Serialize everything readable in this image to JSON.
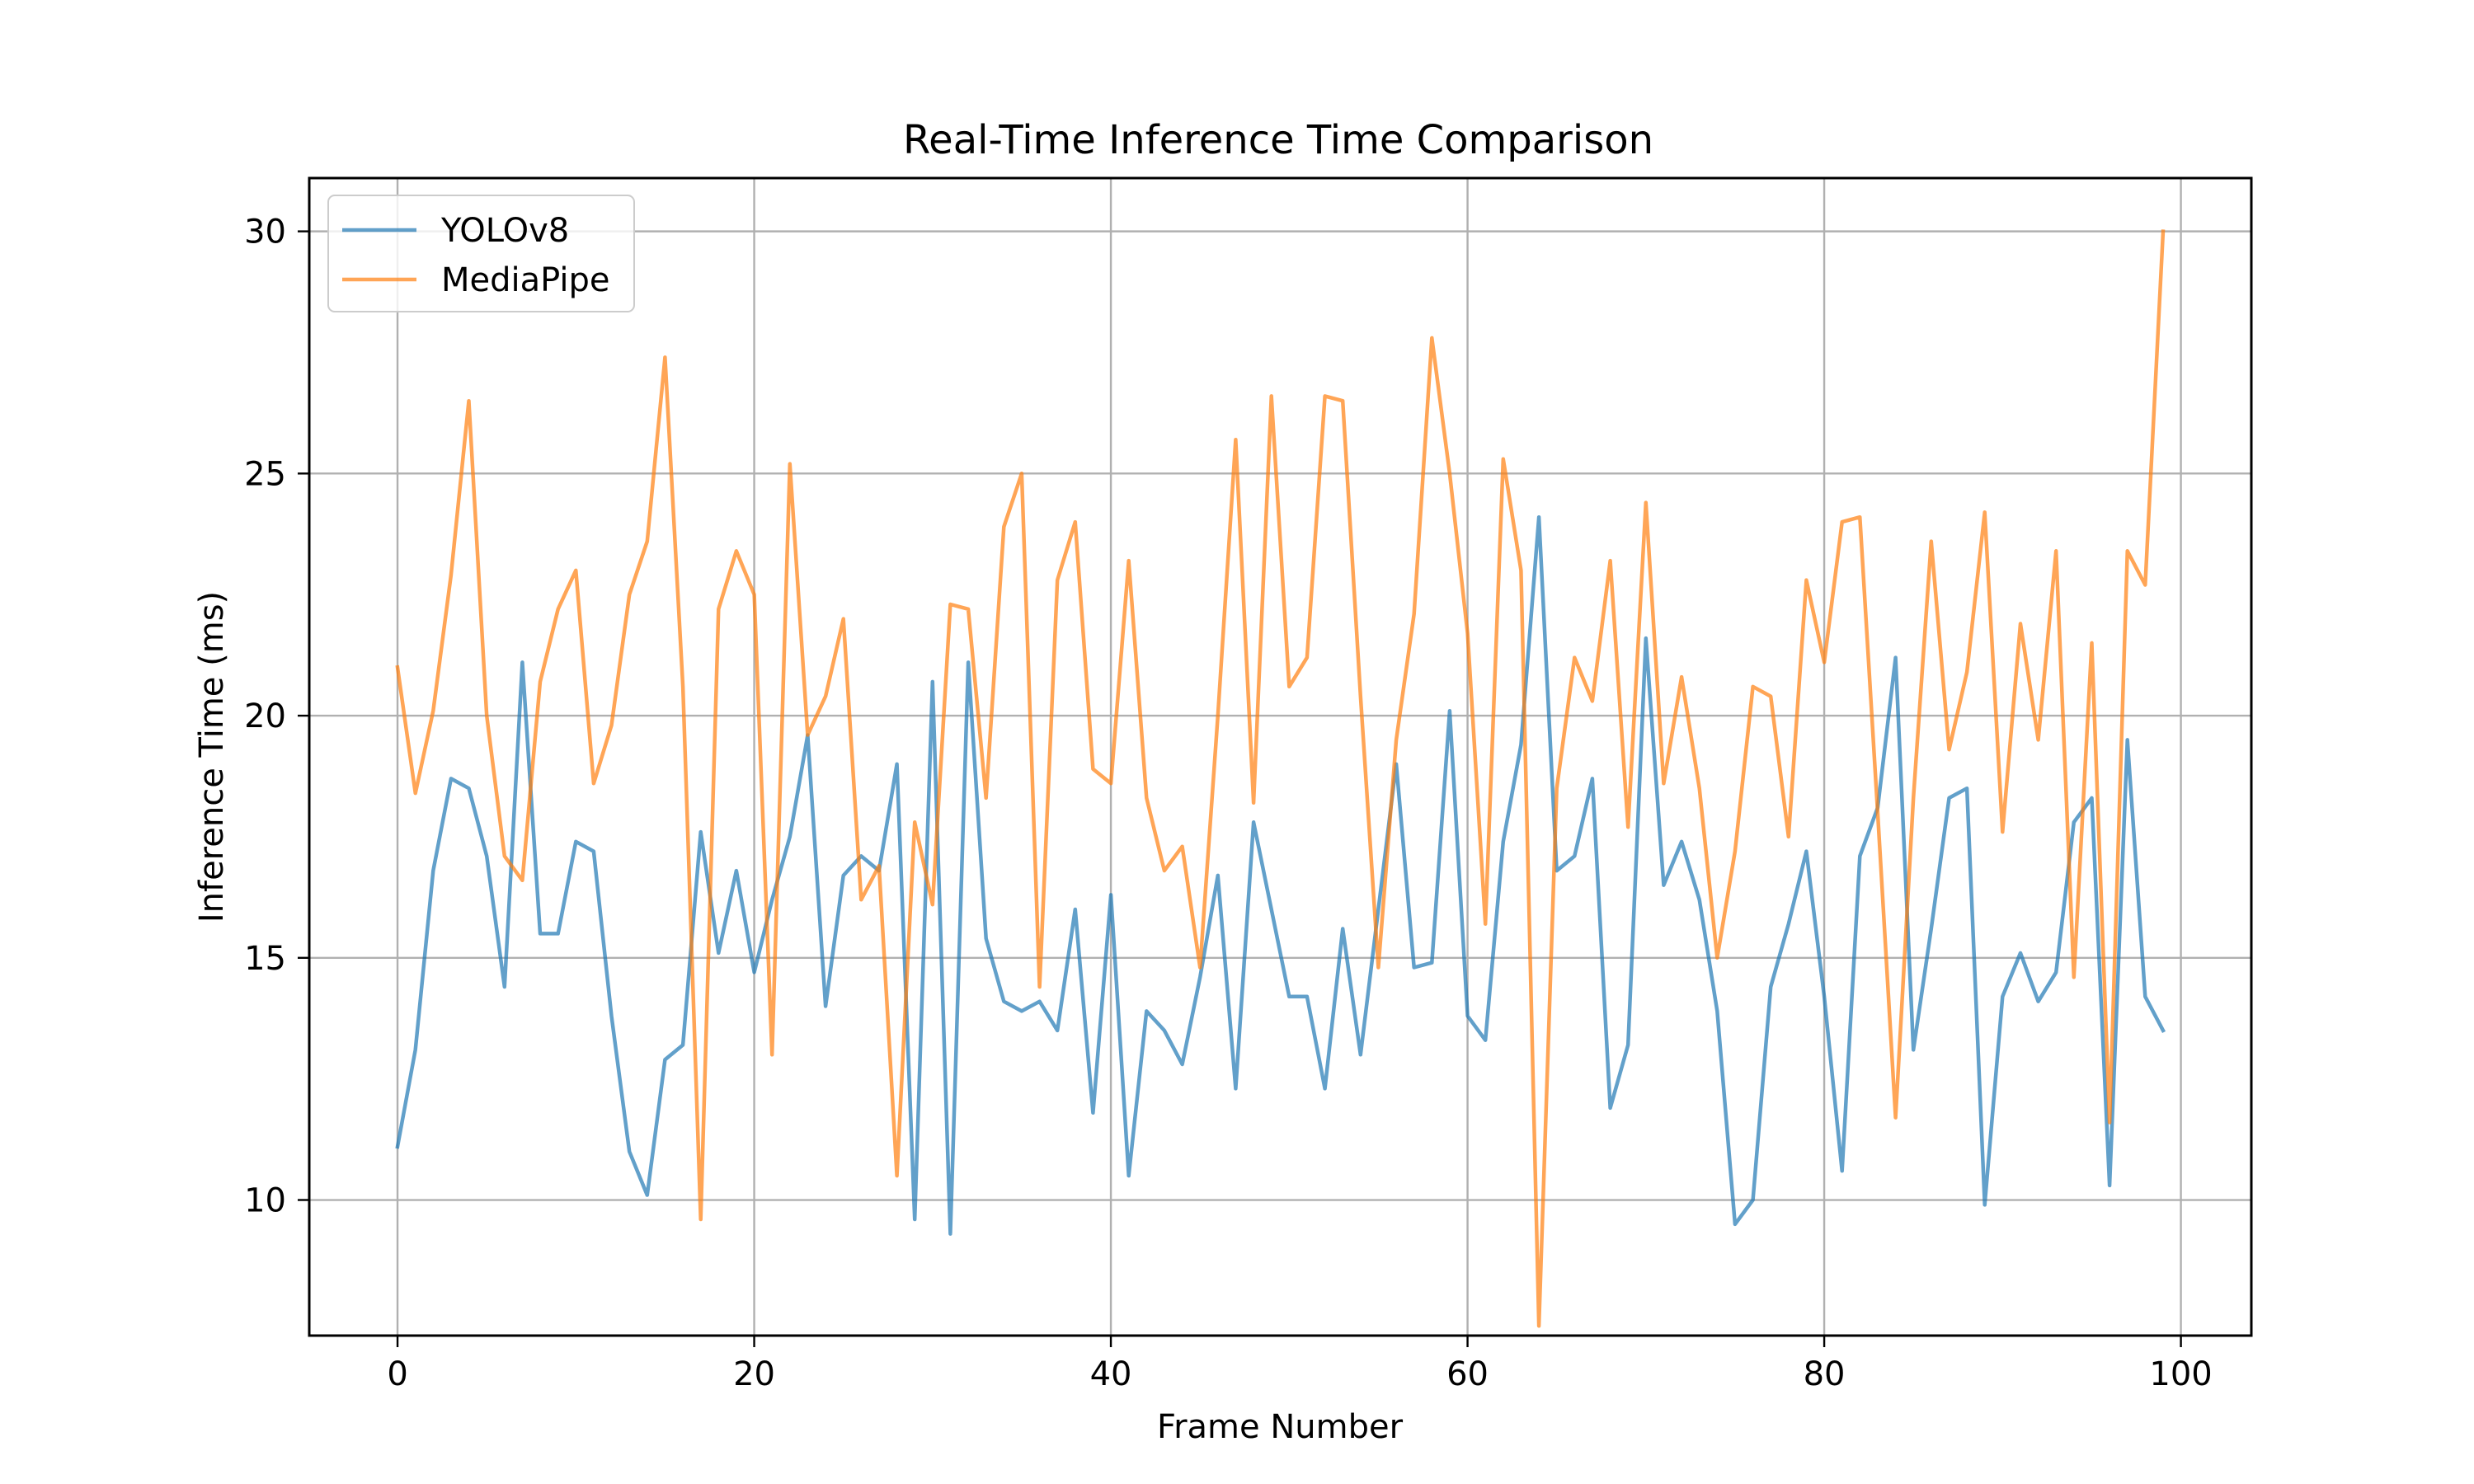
{
  "chart_data": {
    "type": "line",
    "title": "Real-Time Inference Time Comparison",
    "xlabel": "Frame Number",
    "ylabel": "Inference Time (ms)",
    "xlim": [
      -4.95,
      103.95
    ],
    "ylim": [
      7.2,
      31.1
    ],
    "xticks": [
      0,
      20,
      40,
      60,
      80,
      100
    ],
    "yticks": [
      10,
      15,
      20,
      25,
      30
    ],
    "grid": true,
    "legend_position": "upper-left",
    "x": [
      0,
      1,
      2,
      3,
      4,
      5,
      6,
      7,
      8,
      9,
      10,
      11,
      12,
      13,
      14,
      15,
      16,
      17,
      18,
      19,
      20,
      21,
      22,
      23,
      24,
      25,
      26,
      27,
      28,
      29,
      30,
      31,
      32,
      33,
      34,
      35,
      36,
      37,
      38,
      39,
      40,
      41,
      42,
      43,
      44,
      45,
      46,
      47,
      48,
      49,
      50,
      51,
      52,
      53,
      54,
      55,
      56,
      57,
      58,
      59,
      60,
      61,
      62,
      63,
      64,
      65,
      66,
      67,
      68,
      69,
      70,
      71,
      72,
      73,
      74,
      75,
      76,
      77,
      78,
      79,
      80,
      81,
      82,
      83,
      84,
      85,
      86,
      87,
      88,
      89,
      90,
      91,
      92,
      93,
      94,
      95,
      96,
      97,
      98,
      99
    ],
    "series": [
      {
        "name": "YOLOv8",
        "color": "#1f77b4",
        "values": [
          11.1,
          13.1,
          16.8,
          18.7,
          18.5,
          17.1,
          14.4,
          21.1,
          15.5,
          15.5,
          17.4,
          17.2,
          13.8,
          11.0,
          10.1,
          12.9,
          13.2,
          17.6,
          15.1,
          16.8,
          14.7,
          16.2,
          17.5,
          19.6,
          14.0,
          16.7,
          17.1,
          16.8,
          19.0,
          9.6,
          20.7,
          9.3,
          21.1,
          15.4,
          14.1,
          13.9,
          14.1,
          13.5,
          16.0,
          11.8,
          16.3,
          10.5,
          13.9,
          13.5,
          12.8,
          14.6,
          16.7,
          12.3,
          17.8,
          16.0,
          14.2,
          14.2,
          12.3,
          15.6,
          13.0,
          16.0,
          19.0,
          14.8,
          14.9,
          20.1,
          13.8,
          13.3,
          17.4,
          19.4,
          24.1,
          16.8,
          17.1,
          18.7,
          11.9,
          13.2,
          21.6,
          16.5,
          17.4,
          16.2,
          13.9,
          9.5,
          10.0,
          14.4,
          15.7,
          17.2,
          14.2,
          10.6,
          17.1,
          18.1,
          21.2,
          13.1,
          15.6,
          18.3,
          18.5,
          9.9,
          14.2,
          15.1,
          14.1,
          14.7,
          17.8,
          18.3,
          10.3,
          19.5,
          14.2,
          13.5
        ]
      },
      {
        "name": "MediaPipe",
        "color": "#ff7f0e",
        "values": [
          21.0,
          18.4,
          20.1,
          22.9,
          26.5,
          20.0,
          17.1,
          16.6,
          20.7,
          22.2,
          23.0,
          18.6,
          19.8,
          22.5,
          23.6,
          27.4,
          20.6,
          9.6,
          22.2,
          23.4,
          22.5,
          13.0,
          25.2,
          19.6,
          20.4,
          22.0,
          16.2,
          16.9,
          10.5,
          17.8,
          16.1,
          22.3,
          22.2,
          18.3,
          23.9,
          25.0,
          14.4,
          22.8,
          24.0,
          18.9,
          18.6,
          23.2,
          18.3,
          16.8,
          17.3,
          14.8,
          20.0,
          25.7,
          18.2,
          26.6,
          20.6,
          21.2,
          26.6,
          26.5,
          20.4,
          14.8,
          19.5,
          22.1,
          27.8,
          25.0,
          21.7,
          15.7,
          25.3,
          23.0,
          7.4,
          18.5,
          21.2,
          20.3,
          23.2,
          17.7,
          24.4,
          18.6,
          20.8,
          18.5,
          15.0,
          17.2,
          20.6,
          20.4,
          17.5,
          22.8,
          21.1,
          24.0,
          24.1,
          18.0,
          11.7,
          18.3,
          23.6,
          19.3,
          20.9,
          24.2,
          17.6,
          21.9,
          19.5,
          23.4,
          14.6,
          21.5,
          11.6,
          23.4,
          22.7,
          30.0
        ]
      }
    ]
  }
}
